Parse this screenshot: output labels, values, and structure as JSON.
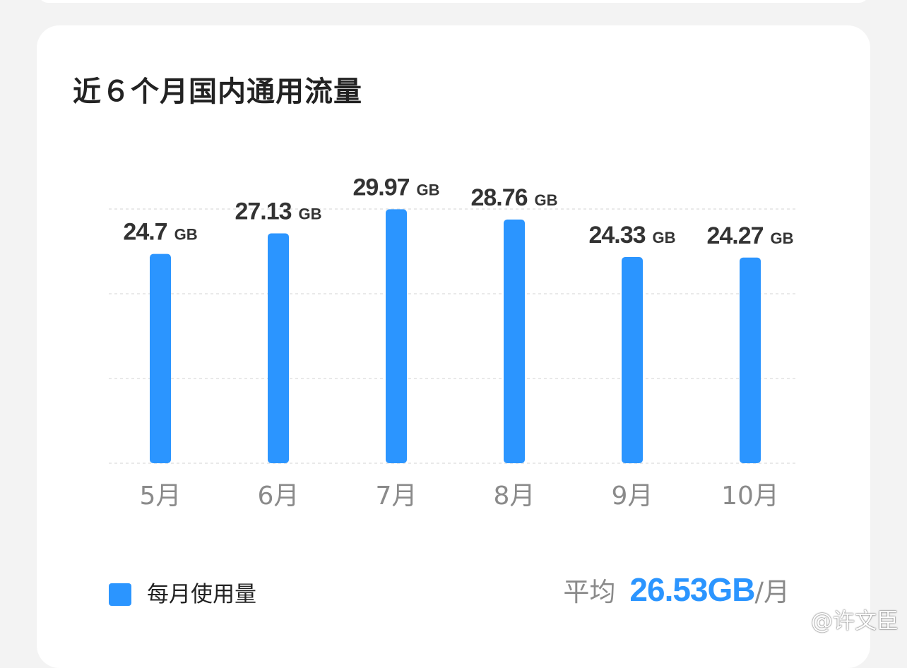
{
  "card": {
    "title": "近６个月国内通用流量"
  },
  "colors": {
    "bar": "#2b95ff",
    "accent": "#2b95ff",
    "grid": "#e2e2e2",
    "month_label": "#8a8a8a"
  },
  "chart_data": {
    "type": "bar",
    "categories": [
      "5月",
      "6月",
      "7月",
      "8月",
      "9月",
      "10月"
    ],
    "series": [
      {
        "name": "每月使用量",
        "values": [
          24.7,
          27.13,
          29.97,
          28.76,
          24.33,
          24.27
        ]
      }
    ],
    "value_unit": "GB",
    "ylim": [
      0,
      30
    ],
    "grid": true,
    "legend": "bottom-left"
  },
  "legend": {
    "label": "每月使用量"
  },
  "average": {
    "label": "平均",
    "value": "26.53GB",
    "unit": "/月"
  },
  "watermark": {
    "text": "@许文臣",
    "icon": "weibo-icon"
  }
}
